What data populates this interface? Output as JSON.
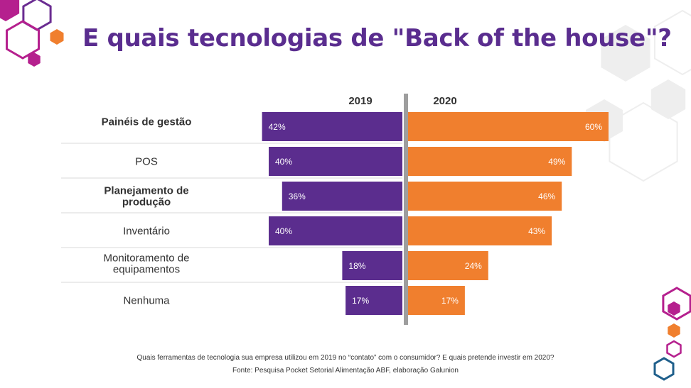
{
  "title": "E quais tecnologias de \"Back of the house\"?",
  "footnote_question": "Quais ferramentas de tecnologia sua empresa utilizou em 2019 no “contato” com o consumidor?  E quais pretende investir em 2020?",
  "footnote_source": "Fonte: Pesquisa Pocket Setorial Alimentação ABF, elaboração Galunion",
  "colors": {
    "title": "#5a2d8f",
    "series_2019": "#5b2d8e",
    "series_2020": "#f07f2e",
    "axis": "#9e9e9e",
    "deco_magenta": "#b5208e",
    "deco_purple": "#6a2c91",
    "deco_orange": "#f07f2e",
    "deco_blue": "#1f5f8b",
    "deco_grey": "#eeeeee"
  },
  "chart_data": {
    "type": "bar",
    "orientation": "horizontal-butterfly",
    "categories": [
      "Painéis de gestão",
      "POS",
      "Planejamento de produção",
      "Inventário",
      "Monitoramento de equipamentos",
      "Nenhuma"
    ],
    "category_label_lines": [
      [
        "Painéis de gestão"
      ],
      [
        "POS"
      ],
      [
        "Planejamento de",
        "produção"
      ],
      [
        "Inventário"
      ],
      [
        "Monitoramento de",
        "equipamentos"
      ],
      [
        "Nenhuma"
      ]
    ],
    "series": [
      {
        "name": "2019",
        "values": [
          42,
          40,
          36,
          40,
          18,
          17
        ],
        "labels": [
          "42%",
          "40%",
          "36%",
          "40%",
          "18%",
          "17%"
        ]
      },
      {
        "name": "2020",
        "values": [
          60,
          49,
          46,
          43,
          24,
          17
        ],
        "labels": [
          "60%",
          "49%",
          "46%",
          "43%",
          "24%",
          "17%"
        ]
      }
    ],
    "unit": "%",
    "legend": "top-center",
    "grid": false
  }
}
